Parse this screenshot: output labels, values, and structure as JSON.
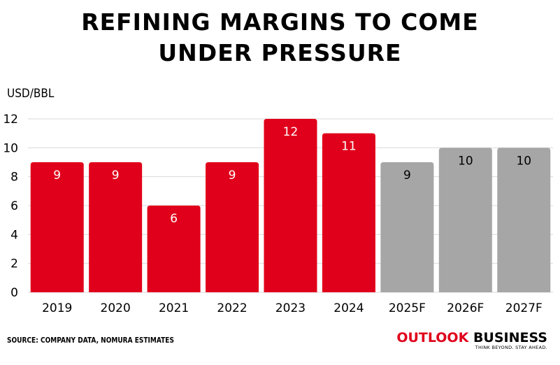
{
  "header": {
    "title_line1": "REFINING MARGINS TO COME",
    "title_line2": "UNDER PRESSURE"
  },
  "chart_data": {
    "type": "bar",
    "title": "REFINING MARGINS TO COME UNDER PRESSURE",
    "ylabel": "USD/BBL",
    "xlabel": "",
    "categories": [
      "2019",
      "2020",
      "2021",
      "2022",
      "2023",
      "2024",
      "2025F",
      "2026F",
      "2027F"
    ],
    "values": [
      9,
      9,
      6,
      9,
      12,
      11,
      9,
      10,
      10
    ],
    "data_labels": [
      "9",
      "9",
      "6",
      "9",
      "12",
      "11",
      "9",
      "10",
      "10"
    ],
    "ylim": [
      0,
      12
    ],
    "yticks": [
      "0",
      "2",
      "4",
      "6",
      "8",
      "10",
      "12"
    ],
    "grid": true,
    "colors": {
      "actual": "#e0001b",
      "forecast": "#a6a6a6",
      "actual_label": "#ffffff",
      "forecast_label": "#000000",
      "grid": "#d9d9d9"
    },
    "forecast_flags": [
      false,
      false,
      false,
      false,
      false,
      false,
      true,
      true,
      true
    ]
  },
  "footer": {
    "source": "SOURCE: COMPANY DATA, NOMURA ESTIMATES",
    "brand_part1": "OUTLOOK",
    "brand_part2": "BUSINESS",
    "brand_tagline": "THINK BEYOND. STAY AHEAD."
  }
}
